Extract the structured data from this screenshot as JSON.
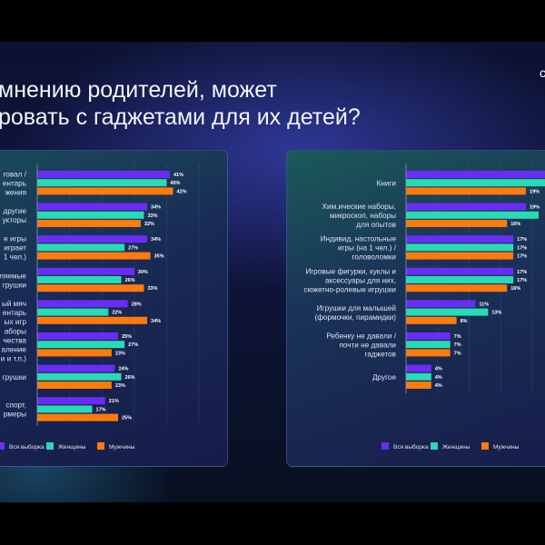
{
  "title": {
    "line1": "мнению родителей, может",
    "line2": "ровать с гаджетами для их детей?"
  },
  "corner_text": "c",
  "colors": {
    "all": "#6b2cf5",
    "women": "#27dcb5",
    "men": "#ff7a0a"
  },
  "chart_data": [
    {
      "type": "bar",
      "orientation": "horizontal",
      "title": "",
      "unit": "%",
      "categories": [
        [
          "говал /",
          "ентарь",
          "жения"
        ],
        [
          "другие",
          "укторы"
        ],
        [
          "е игры",
          "играет",
          "1 чел.)"
        ],
        [
          "ляемые",
          "грушки"
        ],
        [
          "ый мяч",
          "ентарь",
          "ых игр"
        ],
        [
          "аборы",
          "чества",
          "аление",
          "и и т.п.)"
        ],
        [
          "грушки"
        ],
        [
          "спорт,",
          "рмеры"
        ]
      ],
      "series": [
        {
          "name": "Вся выборка",
          "values": [
            41,
            34,
            34,
            30,
            28,
            25,
            24,
            21
          ]
        },
        {
          "name": "Женщины",
          "values": [
            40,
            33,
            27,
            26,
            22,
            27,
            26,
            17
          ]
        },
        {
          "name": "Мужчины",
          "values": [
            42,
            32,
            35,
            33,
            34,
            23,
            23,
            25
          ]
        }
      ],
      "xlim": [
        0,
        60
      ],
      "grid": true,
      "legend": "bottom-left"
    },
    {
      "type": "bar",
      "orientation": "horizontal",
      "title": "",
      "unit": "%",
      "categories": [
        [
          "Книги"
        ],
        [
          "Хим.ические наборы,",
          "микроскоп, наборы",
          "для опытов"
        ],
        [
          "Индивид. настольные",
          "игры (на 1 чел.) /",
          "головоломки"
        ],
        [
          "Игровые фигурки, куклы и",
          "аксессуары для них,",
          "сюжетно-ролевые игрушки"
        ],
        [
          "Игрушки для малышей",
          "(формочки, пирамидки)"
        ],
        [
          "Ребенку не давали /",
          "почти не давали",
          "гаджетов"
        ],
        [
          "Другое"
        ]
      ],
      "series": [
        {
          "name": "Вся выборка",
          "values": [
            22,
            19,
            17,
            17,
            11,
            7,
            4
          ],
          "labels_shown": [
            false,
            true,
            true,
            true,
            true,
            true,
            true
          ]
        },
        {
          "name": "Женщины",
          "values": [
            25,
            21,
            17,
            17,
            13,
            7,
            4
          ],
          "labels_shown": [
            false,
            false,
            true,
            true,
            true,
            true,
            true
          ]
        },
        {
          "name": "Мужчины",
          "values": [
            19,
            16,
            17,
            16,
            8,
            7,
            4
          ],
          "labels_shown": [
            true,
            true,
            true,
            true,
            true,
            true,
            true
          ]
        }
      ],
      "xlim": [
        0,
        30
      ],
      "grid": true,
      "legend": "bottom-right"
    }
  ]
}
